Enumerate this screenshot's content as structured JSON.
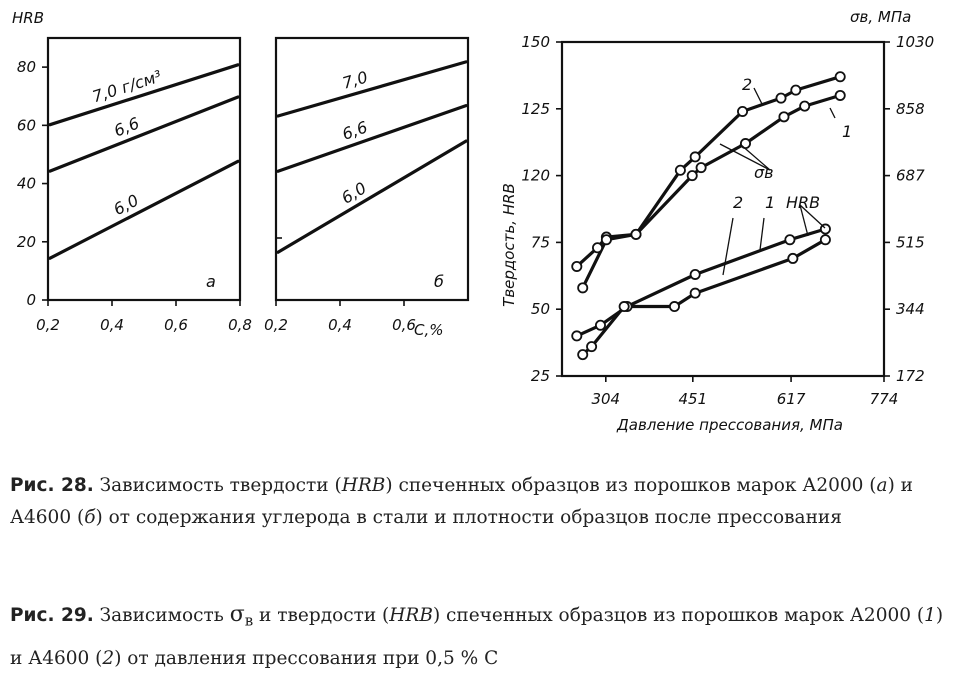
{
  "chart_data": [
    {
      "id": "fig28a",
      "type": "line",
      "panel_label": "а",
      "ylabel": "HRB",
      "yticks": [
        "0",
        "20",
        "40",
        "60",
        "80"
      ],
      "xticks": [
        "0,2",
        "0,4",
        "0,6",
        "0,8"
      ],
      "xlim": [
        0.2,
        0.8
      ],
      "ylim": [
        0,
        90
      ],
      "series": [
        {
          "name": "7,0 г/см³",
          "x": [
            0.2,
            0.8
          ],
          "y": [
            60,
            81
          ]
        },
        {
          "name": "6,6",
          "x": [
            0.2,
            0.8
          ],
          "y": [
            44,
            70
          ]
        },
        {
          "name": "6,0",
          "x": [
            0.2,
            0.8
          ],
          "y": [
            14,
            48
          ]
        }
      ]
    },
    {
      "id": "fig28b",
      "type": "line",
      "panel_label": "б",
      "xlabel": "С,%",
      "xticks": [
        "0,2",
        "0,4",
        "0,6"
      ],
      "xlim": [
        0.2,
        0.8
      ],
      "ylim": [
        0,
        90
      ],
      "series": [
        {
          "name": "7,0",
          "x": [
            0.2,
            0.8
          ],
          "y": [
            63,
            82
          ]
        },
        {
          "name": "6,6",
          "x": [
            0.2,
            0.8
          ],
          "y": [
            44,
            67
          ]
        },
        {
          "name": "6,0",
          "x": [
            0.2,
            0.8
          ],
          "y": [
            16,
            55
          ]
        }
      ]
    },
    {
      "id": "fig29",
      "type": "line",
      "ylabel": "Твердость, HRB",
      "y2label": "σв, МПа",
      "xlabel": "Давление прессования, МПа",
      "xticks": [
        "304",
        "451",
        "617",
        "774"
      ],
      "yticks": [
        "25",
        "50",
        "75",
        "120",
        "125",
        "150"
      ],
      "y2ticks": [
        "172",
        "344",
        "515",
        "687",
        "858",
        "1030"
      ],
      "xlim": [
        230,
        774
      ],
      "ylim": [
        25,
        150
      ],
      "annotations": [
        "σв",
        "HRB",
        "1",
        "2",
        "1",
        "2"
      ],
      "series": [
        {
          "name": "2",
          "group": "σв",
          "x": [
            255,
            290,
            305,
            355,
            430,
            455,
            535,
            600,
            625,
            700
          ],
          "y": [
            66,
            73,
            77,
            78,
            102,
            107,
            124,
            129,
            132,
            137
          ]
        },
        {
          "name": "1",
          "group": "σв",
          "x": [
            265,
            305,
            355,
            450,
            465,
            540,
            605,
            640,
            700
          ],
          "y": [
            58,
            76,
            78,
            100,
            103,
            112,
            122,
            126,
            130
          ]
        },
        {
          "name": "2",
          "group": "HRB",
          "x": [
            255,
            295,
            340,
            455,
            615,
            675
          ],
          "y": [
            40,
            44,
            51,
            63,
            76,
            80
          ]
        },
        {
          "name": "1",
          "group": "HRB",
          "x": [
            265,
            280,
            335,
            420,
            455,
            620,
            675
          ],
          "y": [
            33,
            36,
            51,
            51,
            56,
            69,
            76
          ]
        }
      ]
    }
  ],
  "captions": {
    "fig28": {
      "label": "Рис. 28.",
      "text1": " Зависимость твердости (",
      "hrb": "HRB",
      "text2": ") спеченных образцов из порошков марок А2000 (",
      "a": "а",
      "text3": ") и А4600 (",
      "b": "б",
      "text4": ") от содержания углерода в стали и плотности образцов после прессования"
    },
    "fig29": {
      "label": "Рис. 29.",
      "text1": " Зависимость ",
      "sigma": "σ",
      "sub": "в",
      "text2": " и твердости (",
      "hrb": "HRB",
      "text3": ") спеченных образцов из порошков марок А2000 (",
      "one": "1",
      "text4": ") и А4600 (",
      "two": "2",
      "text5": ") от давления прессования при 0,5 % С"
    }
  }
}
